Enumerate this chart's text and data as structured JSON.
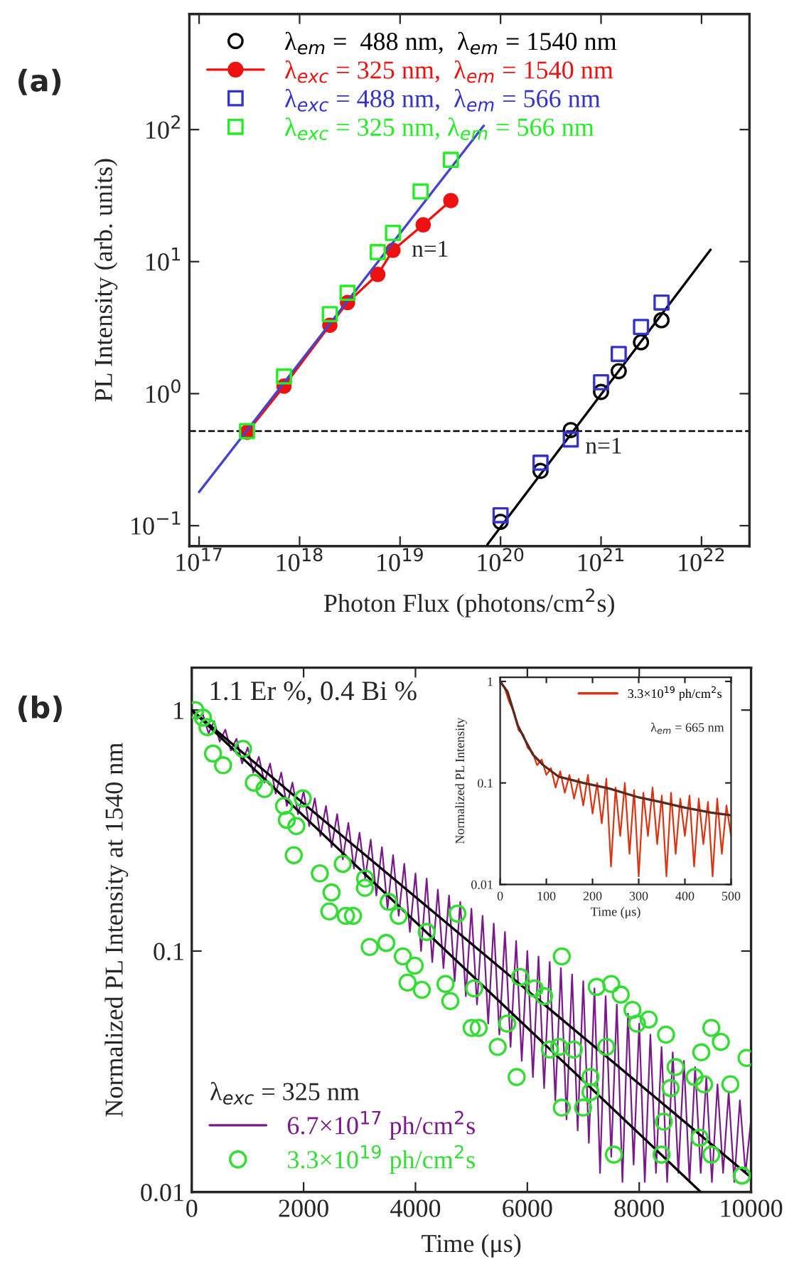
{
  "chart_data": [
    {
      "type": "scatter",
      "xlabel": "Photon Flux (photons/cm$^{2}$s)",
      "ylabel": "PL Intensity (arb. units)",
      "log": "xy",
      "xlim": [
        8e+16,
        3e+22
      ],
      "ylim": [
        0.07,
        750
      ],
      "xticks": [
        {
          "value": 1e+17,
          "label": "10$^{17}$"
        },
        {
          "value": 1e+18,
          "label": "10$^{18}$"
        },
        {
          "value": 1e+19,
          "label": "10$^{19}$"
        },
        {
          "value": 1e+20,
          "label": "10$^{20}$"
        },
        {
          "value": 1e+21,
          "label": "10$^{21}$"
        },
        {
          "value": 1e+22,
          "label": "10$^{22}$"
        }
      ],
      "yticks": [
        {
          "value": 0.1,
          "label": "10$^{−1}$"
        },
        {
          "value": 1,
          "label": "10$^{0}$"
        },
        {
          "value": 10,
          "label": "10$^{1}$"
        },
        {
          "value": 100,
          "label": "10$^{2}$"
        }
      ],
      "grid": false,
      "legend": "top left",
      "annotations": [
        "(a)",
        "n=1",
        "n=1"
      ],
      "ref_lines": [
        {
          "axis": "y",
          "value": 0.52,
          "color": "#000000",
          "line_style": "dashed"
        }
      ],
      "series": [
        {
          "name": "λ$_{em}$ =  488 nm,  λ$_{em}$ = 1540 nm",
          "marker": "circle",
          "color": "#000000",
          "x": [
            1e+20,
            2.5e+20,
            5e+20,
            1e+21,
            1.5e+21,
            2.5e+21,
            4e+21
          ],
          "values": [
            0.107,
            0.26,
            0.53,
            1.03,
            1.48,
            2.45,
            3.6
          ]
        },
        {
          "name": "λ$_{exc}$ = 325 nm,  λ$_{em}$ = 1540 nm",
          "type": "line",
          "marker": "circle",
          "color": "#ee1111",
          "x": [
            3e+17,
            7e+17,
            2e+18,
            3e+18,
            6e+18,
            8.5e+18,
            1.7e+19,
            3.2e+19
          ],
          "values": [
            0.51,
            1.14,
            3.3,
            4.9,
            8.0,
            12.2,
            19,
            29
          ]
        },
        {
          "name": "λ$_{exc}$ = 488 nm,  λ$_{em}$ = 566 nm",
          "marker": "square",
          "color": "#3333cc",
          "x": [
            1e+20,
            2.5e+20,
            5e+20,
            1e+21,
            1.5e+21,
            2.5e+21,
            4e+21
          ],
          "values": [
            0.12,
            0.3,
            0.45,
            1.22,
            2.0,
            3.2,
            4.9
          ]
        },
        {
          "name": "λ$_{exc}$ = 325 nm, λ$_{em}$ = 566 nm",
          "marker": "square",
          "color": "#22ee22",
          "x": [
            3e+17,
            7e+17,
            2e+18,
            3e+18,
            6e+18,
            8.5e+18,
            1.6e+19,
            3.2e+19
          ],
          "values": [
            0.52,
            1.35,
            4.0,
            5.8,
            11.8,
            16.5,
            34,
            59
          ]
        },
        {
          "type": "line",
          "marker": "none",
          "color": "#4444cc",
          "x": [
            1e+17,
            6.8e+19
          ],
          "values": [
            0.18,
            107
          ]
        },
        {
          "type": "line",
          "marker": "none",
          "color": "#000000",
          "x": [
            7.4e+19,
            1.23e+22
          ],
          "values": [
            0.072,
            12.3
          ]
        }
      ]
    },
    {
      "type": "line",
      "xlabel": "Time (μs)",
      "ylabel": "Normalized PL Intensity at 1540 nm",
      "log": "y",
      "xlim": [
        0,
        10000
      ],
      "ylim": [
        0.01,
        1.5
      ],
      "xticks": [
        0,
        2000,
        4000,
        6000,
        8000,
        10000
      ],
      "yticks": [
        0.01,
        0.1,
        1
      ],
      "grid": false,
      "legend": "bottom left",
      "legend_title": "λ$_{exc}$ = 325 nm",
      "annotations": [
        "(b)",
        "1.1 Er %, 0.4 Bi %"
      ],
      "series": [
        {
          "name": "6.7×10$^{17}$ ph/cm$^{2}$s",
          "marker": "none",
          "color": "#7a1a8a",
          "x": [
            0,
            100,
            200,
            300,
            400,
            500,
            600,
            700,
            800,
            900,
            1000,
            1100,
            1200,
            1300,
            1400,
            1500,
            1600,
            1700,
            1800,
            1900,
            2000,
            2100,
            2200,
            2300,
            2400,
            2500,
            2600,
            2700,
            2800,
            2900,
            3000,
            3100,
            3200,
            3300,
            3400,
            3500,
            3600,
            3700,
            3800,
            3900,
            4000,
            4100,
            4200,
            4300,
            4400,
            4500,
            4600,
            4700,
            4800,
            4900,
            5000,
            5100,
            5200,
            5300,
            5400,
            5500,
            5600,
            5700,
            5800,
            5900,
            6000,
            6100,
            6200,
            6300,
            6400,
            6500,
            6600,
            6700,
            6800,
            6900,
            7000,
            7100,
            7200,
            7300,
            7400,
            7500,
            7600,
            7700,
            7800,
            7900,
            8000,
            8100,
            8200,
            8300,
            8400,
            8500,
            8600,
            8700,
            8800,
            8900,
            9000,
            9100,
            9200,
            9300,
            9400,
            9500,
            9600,
            9700,
            9800,
            9900,
            10000
          ],
          "values": [
            1.0,
            0.92,
            0.96,
            0.8,
            0.9,
            0.74,
            0.83,
            0.68,
            0.76,
            0.6,
            0.7,
            0.55,
            0.64,
            0.5,
            0.6,
            0.45,
            0.55,
            0.4,
            0.5,
            0.37,
            0.46,
            0.33,
            0.43,
            0.3,
            0.4,
            0.27,
            0.37,
            0.24,
            0.34,
            0.22,
            0.31,
            0.2,
            0.29,
            0.17,
            0.27,
            0.15,
            0.25,
            0.14,
            0.23,
            0.12,
            0.21,
            0.1,
            0.2,
            0.09,
            0.18,
            0.085,
            0.17,
            0.075,
            0.16,
            0.065,
            0.15,
            0.06,
            0.14,
            0.05,
            0.13,
            0.045,
            0.12,
            0.04,
            0.11,
            0.035,
            0.1,
            0.03,
            0.095,
            0.027,
            0.09,
            0.024,
            0.085,
            0.02,
            0.08,
            0.018,
            0.075,
            0.016,
            0.07,
            0.012,
            0.065,
            0.014,
            0.06,
            0.011,
            0.055,
            0.013,
            0.05,
            0.011,
            0.045,
            0.012,
            0.04,
            0.011,
            0.038,
            0.012,
            0.035,
            0.011,
            0.033,
            0.012,
            0.03,
            0.011,
            0.028,
            0.012,
            0.026,
            0.011,
            0.024,
            0.012,
            0.02
          ]
        },
        {
          "name": "3.3×10$^{19}$ ph/cm$^{2}$s",
          "type": "scatter",
          "marker": "circle",
          "color": "#33dd33",
          "x": [
            64,
            200,
            280,
            380,
            560,
            916,
            1110,
            1300,
            1650,
            1700,
            1824,
            1870,
            1985,
            2290,
            2460,
            2500,
            2700,
            2756,
            2883,
            3096,
            3100,
            3181,
            3478,
            3520,
            3700,
            3774,
            3859,
            3986,
            4114,
            4200,
            4537,
            4623,
            4750,
            5004,
            5050,
            5130,
            5470,
            5640,
            5809,
            5870,
            6130,
            6300,
            6404,
            6570,
            6616,
            6616,
            6830,
            6997,
            7130,
            7130,
            7240,
            7410,
            7500,
            7548,
            7670,
            7880,
            7960,
            8170,
            8400,
            8440,
            8480,
            8560,
            8650,
            8990,
            9080,
            9110,
            9160,
            9290,
            9290,
            9460,
            9630,
            9838,
            9920
          ],
          "values": [
            1.0,
            0.93,
            0.85,
            0.66,
            0.59,
            0.69,
            0.5,
            0.47,
            0.4,
            0.35,
            0.25,
            0.33,
            0.43,
            0.21,
            0.146,
            0.175,
            0.23,
            0.14,
            0.14,
            0.183,
            0.2,
            0.104,
            0.108,
            0.16,
            0.14,
            0.095,
            0.074,
            0.087,
            0.069,
            0.12,
            0.073,
            0.062,
            0.143,
            0.048,
            0.07,
            0.048,
            0.04,
            0.05,
            0.03,
            0.078,
            0.07,
            0.065,
            0.039,
            0.04,
            0.095,
            0.0224,
            0.039,
            0.0224,
            0.03,
            0.026,
            0.071,
            0.04,
            0.073,
            0.0143,
            0.066,
            0.057,
            0.05,
            0.052,
            0.0143,
            0.0196,
            0.045,
            0.027,
            0.033,
            0.03,
            0.0168,
            0.038,
            0.028,
            0.048,
            0.0143,
            0.042,
            0.028,
            0.0117,
            0.036
          ]
        },
        {
          "marker": "none",
          "color": "#000000",
          "x": [
            0,
            10000
          ],
          "values": [
            1,
            0.0115
          ]
        },
        {
          "marker": "none",
          "color": "#000000",
          "x": [
            0,
            9100
          ],
          "values": [
            1,
            0.01
          ]
        }
      ]
    },
    {
      "type": "line",
      "xlabel": "Time (μs)",
      "ylabel": "Normalized PL Intensity",
      "log": "y",
      "xlim": [
        0,
        500
      ],
      "ylim": [
        0.01,
        1.1
      ],
      "xticks": [
        0,
        100,
        200,
        300,
        400,
        500
      ],
      "yticks": [
        0.01,
        0.1,
        1
      ],
      "grid": false,
      "legend": "top right",
      "annotations": [
        "λ$_{em}$ = 665 nm"
      ],
      "series": [
        {
          "name": "3.3×10$^{19}$ ph/cm$^{2}$s",
          "marker": "none",
          "color": "#dd3311",
          "x": [
            0,
            10,
            20,
            30,
            40,
            50,
            60,
            70,
            80,
            90,
            100,
            110,
            120,
            130,
            140,
            150,
            160,
            170,
            180,
            190,
            200,
            210,
            220,
            230,
            240,
            250,
            260,
            270,
            280,
            290,
            300,
            310,
            320,
            330,
            340,
            350,
            360,
            370,
            380,
            390,
            400,
            410,
            420,
            430,
            440,
            450,
            460,
            470,
            480,
            490,
            500
          ],
          "values": [
            1.0,
            0.85,
            0.62,
            0.5,
            0.33,
            0.3,
            0.22,
            0.2,
            0.15,
            0.17,
            0.12,
            0.14,
            0.09,
            0.13,
            0.08,
            0.12,
            0.07,
            0.11,
            0.06,
            0.12,
            0.05,
            0.1,
            0.04,
            0.11,
            0.015,
            0.09,
            0.03,
            0.1,
            0.02,
            0.085,
            0.012,
            0.08,
            0.03,
            0.09,
            0.025,
            0.075,
            0.012,
            0.08,
            0.02,
            0.07,
            0.03,
            0.075,
            0.015,
            0.07,
            0.025,
            0.065,
            0.012,
            0.07,
            0.02,
            0.06,
            0.03
          ]
        },
        {
          "marker": "none",
          "color": "#5a2a1a",
          "x": [
            0,
            16,
            38,
            55,
            71,
            93,
            127,
            180,
            237,
            300,
            347,
            400,
            457,
            500
          ],
          "values": [
            1,
            0.79,
            0.37,
            0.26,
            0.19,
            0.15,
            0.115,
            0.1,
            0.088,
            0.072,
            0.065,
            0.057,
            0.051,
            0.048
          ]
        }
      ]
    }
  ]
}
